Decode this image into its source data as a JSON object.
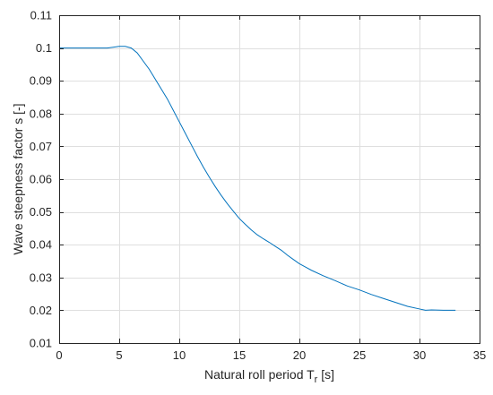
{
  "chart_data": {
    "type": "line",
    "xlabel_main": "Natural roll period T",
    "xlabel_sub": "r",
    "xlabel_tail": " [s]",
    "ylabel": "Wave steepness factor s [-]",
    "xlim": [
      0,
      35
    ],
    "ylim": [
      0.01,
      0.11
    ],
    "grid": true,
    "x_ticks": [
      0,
      5,
      10,
      15,
      20,
      25,
      30,
      35
    ],
    "x_tick_labels": [
      "0",
      "5",
      "10",
      "15",
      "20",
      "25",
      "30",
      "35"
    ],
    "y_ticks": [
      0.01,
      0.02,
      0.03,
      0.04,
      0.05,
      0.06,
      0.07,
      0.08,
      0.09,
      0.1,
      0.11
    ],
    "y_tick_labels": [
      "0.01",
      "0.02",
      "0.03",
      "0.04",
      "0.05",
      "0.06",
      "0.07",
      "0.08",
      "0.09",
      "0.1",
      "0.11"
    ],
    "series": [
      {
        "color": "#0072bd",
        "x": [
          0,
          1,
          2,
          3,
          4,
          5,
          5.5,
          6,
          6.5,
          7,
          7.5,
          8,
          8.5,
          9,
          9.5,
          10,
          10.5,
          11,
          11.5,
          12,
          12.5,
          13,
          13.5,
          14,
          14.5,
          15,
          15.5,
          16,
          16.5,
          17,
          17.5,
          18,
          18.5,
          19,
          19.5,
          20,
          20.5,
          21,
          22,
          23,
          24,
          25,
          26,
          27,
          28,
          29,
          30,
          30.5,
          31,
          32,
          33
        ],
        "y": [
          0.1,
          0.1,
          0.1,
          0.1,
          0.1,
          0.1005,
          0.1005,
          0.1,
          0.0985,
          0.096,
          0.0935,
          0.0905,
          0.0875,
          0.0845,
          0.081,
          0.0775,
          0.074,
          0.0705,
          0.067,
          0.0637,
          0.0606,
          0.0577,
          0.055,
          0.0525,
          0.0502,
          0.048,
          0.0462,
          0.0445,
          0.043,
          0.0418,
          0.0407,
          0.0395,
          0.0383,
          0.0368,
          0.0355,
          0.0342,
          0.0332,
          0.0322,
          0.0305,
          0.029,
          0.0274,
          0.0262,
          0.0248,
          0.0236,
          0.0224,
          0.0212,
          0.0204,
          0.02,
          0.0201,
          0.02,
          0.02
        ]
      }
    ]
  }
}
